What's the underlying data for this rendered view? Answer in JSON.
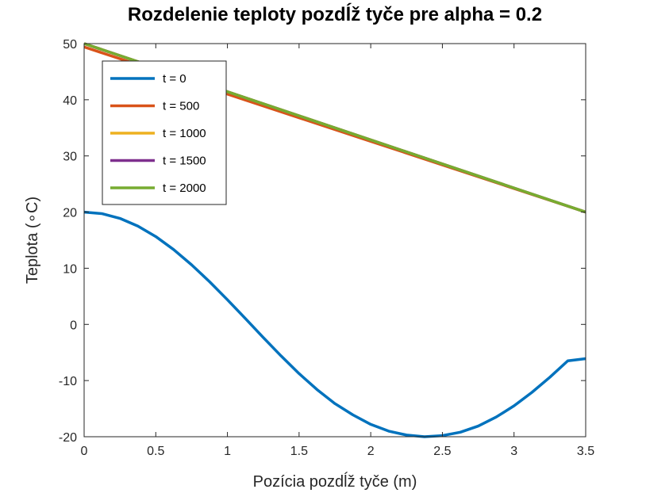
{
  "chart_data": {
    "type": "line",
    "title": "Rozdelenie teploty pozdĺž tyče pre alpha = 0.2",
    "xlabel": "Pozícia pozdĺž tyče (m)",
    "ylabel": "Teplota (∘C)",
    "xlim": [
      0,
      3.5
    ],
    "ylim": [
      -20,
      50
    ],
    "xticks": [
      0,
      0.5,
      1,
      1.5,
      2,
      2.5,
      3,
      3.5
    ],
    "xtick_labels": [
      "0",
      "0.5",
      "1",
      "1.5",
      "2",
      "2.5",
      "3",
      "3.5"
    ],
    "yticks": [
      -20,
      -10,
      0,
      10,
      20,
      30,
      40,
      50
    ],
    "ytick_labels": [
      "-20",
      "-10",
      "0",
      "10",
      "20",
      "30",
      "40",
      "50"
    ],
    "grid": false,
    "legend_position": "top-left",
    "series": [
      {
        "name": "t = 0",
        "color": "#0072BD",
        "x": [
          0,
          0.125,
          0.25,
          0.375,
          0.5,
          0.625,
          0.75,
          0.875,
          1,
          1.125,
          1.25,
          1.375,
          1.5,
          1.625,
          1.75,
          1.875,
          2,
          2.125,
          2.25,
          2.375,
          2.5,
          2.625,
          2.75,
          2.875,
          3,
          3.125,
          3.25,
          3.375,
          3.5
        ],
        "y": [
          20,
          19.72,
          18.88,
          17.51,
          15.64,
          13.31,
          10.61,
          7.61,
          4.39,
          1.05,
          -2.33,
          -5.63,
          -8.76,
          -11.6,
          -14.1,
          -16.1,
          -17.8,
          -19.0,
          -19.7,
          -20.0,
          -19.8,
          -19.2,
          -18.1,
          -16.5,
          -14.5,
          -12.1,
          -9.41,
          -6.49,
          -6.1
        ]
      },
      {
        "name": "t = 500",
        "color": "#D95319",
        "x": [
          0,
          0.5,
          1,
          1.5,
          2,
          2.5,
          3,
          3.5
        ],
        "y": [
          49.4,
          45.2,
          41.0,
          36.8,
          32.6,
          28.4,
          24.2,
          20.0
        ]
      },
      {
        "name": "t = 1000",
        "color": "#EDB120",
        "x": [
          0,
          3.5
        ],
        "y": [
          50,
          20
        ]
      },
      {
        "name": "t = 1500",
        "color": "#7E2F8E",
        "x": [
          0,
          3.5
        ],
        "y": [
          50,
          20
        ]
      },
      {
        "name": "t = 2000",
        "color": "#77AC30",
        "x": [
          0,
          3.5
        ],
        "y": [
          50,
          20
        ]
      }
    ]
  }
}
